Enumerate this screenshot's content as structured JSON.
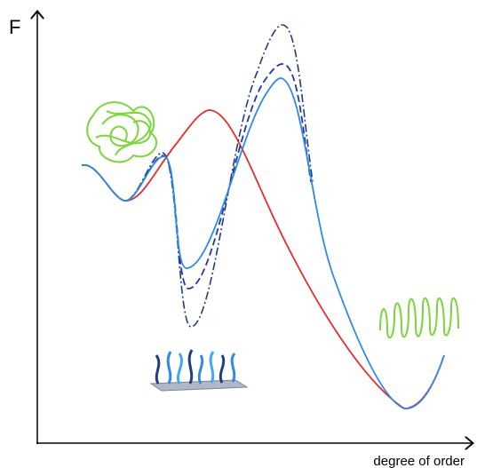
{
  "axes": {
    "y_label": "F",
    "x_label": "degree of order"
  }
}
